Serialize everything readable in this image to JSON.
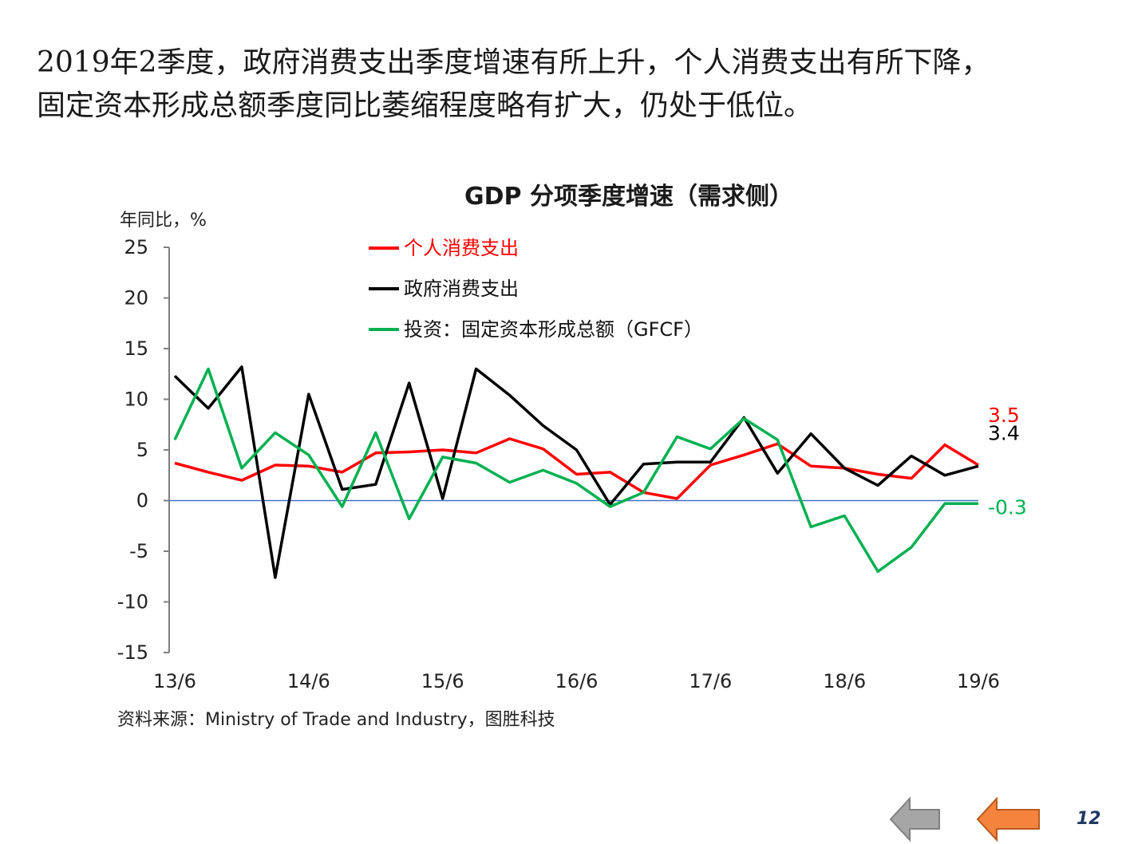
{
  "headline": {
    "line1": "2019年2季度，政府消费支出季度增速有所上升，个人消费支出有所下降，",
    "line2": "固定资本形成总额季度同比萎缩程度略有扩大，仍处于低位。"
  },
  "chart_data": {
    "type": "line",
    "title": "GDP 分项季度增速（需求侧）",
    "ylabel": "年同比，%",
    "xlabel": "",
    "ylim": [
      -15,
      25
    ],
    "yticks": [
      25,
      20,
      15,
      10,
      5,
      0,
      -5,
      -10,
      -15
    ],
    "x_tick_labels": [
      "13/6",
      "14/6",
      "15/6",
      "16/6",
      "17/6",
      "18/6",
      "19/6"
    ],
    "x_tick_index": [
      0,
      4,
      8,
      12,
      16,
      20,
      24
    ],
    "n_points": 25,
    "series": [
      {
        "name": "个人消费支出",
        "color": "#ff0000",
        "values": [
          3.7,
          2.8,
          2.0,
          3.5,
          3.4,
          2.8,
          4.7,
          4.8,
          5.0,
          4.7,
          6.1,
          5.1,
          2.6,
          2.8,
          0.8,
          0.2,
          3.5,
          4.5,
          5.6,
          3.4,
          3.2,
          2.6,
          2.2,
          5.5,
          3.5
        ],
        "end_label": "3.5"
      },
      {
        "name": "政府消费支出",
        "color": "#000000",
        "values": [
          12.3,
          9.1,
          13.2,
          -7.6,
          10.5,
          1.1,
          1.6,
          11.6,
          0.2,
          13.0,
          10.4,
          7.4,
          5.0,
          -0.4,
          3.6,
          3.8,
          3.8,
          8.2,
          2.7,
          6.6,
          3.2,
          1.5,
          4.4,
          2.5,
          3.4
        ],
        "end_label": "3.4"
      },
      {
        "name": "投资：固定资本形成总额（GFCF）",
        "color": "#00b050",
        "values": [
          6.0,
          13.0,
          3.2,
          6.7,
          4.5,
          -0.6,
          6.7,
          -1.8,
          4.3,
          3.7,
          1.8,
          3.0,
          1.7,
          -0.6,
          0.8,
          6.3,
          5.1,
          8.1,
          6.0,
          -2.6,
          -1.5,
          -7.0,
          -4.6,
          -0.3,
          -0.3
        ],
        "end_label": "-0.3"
      }
    ],
    "legend_position": "top-center",
    "grid": false,
    "zero_line_color": "#4472c4"
  },
  "source": {
    "text": "资料来源：Ministry of Trade and Industry，图胜科技"
  },
  "nav": {
    "back_color": "#a6a6a6",
    "next_color": "#f4833d"
  },
  "page": {
    "number": "12"
  }
}
